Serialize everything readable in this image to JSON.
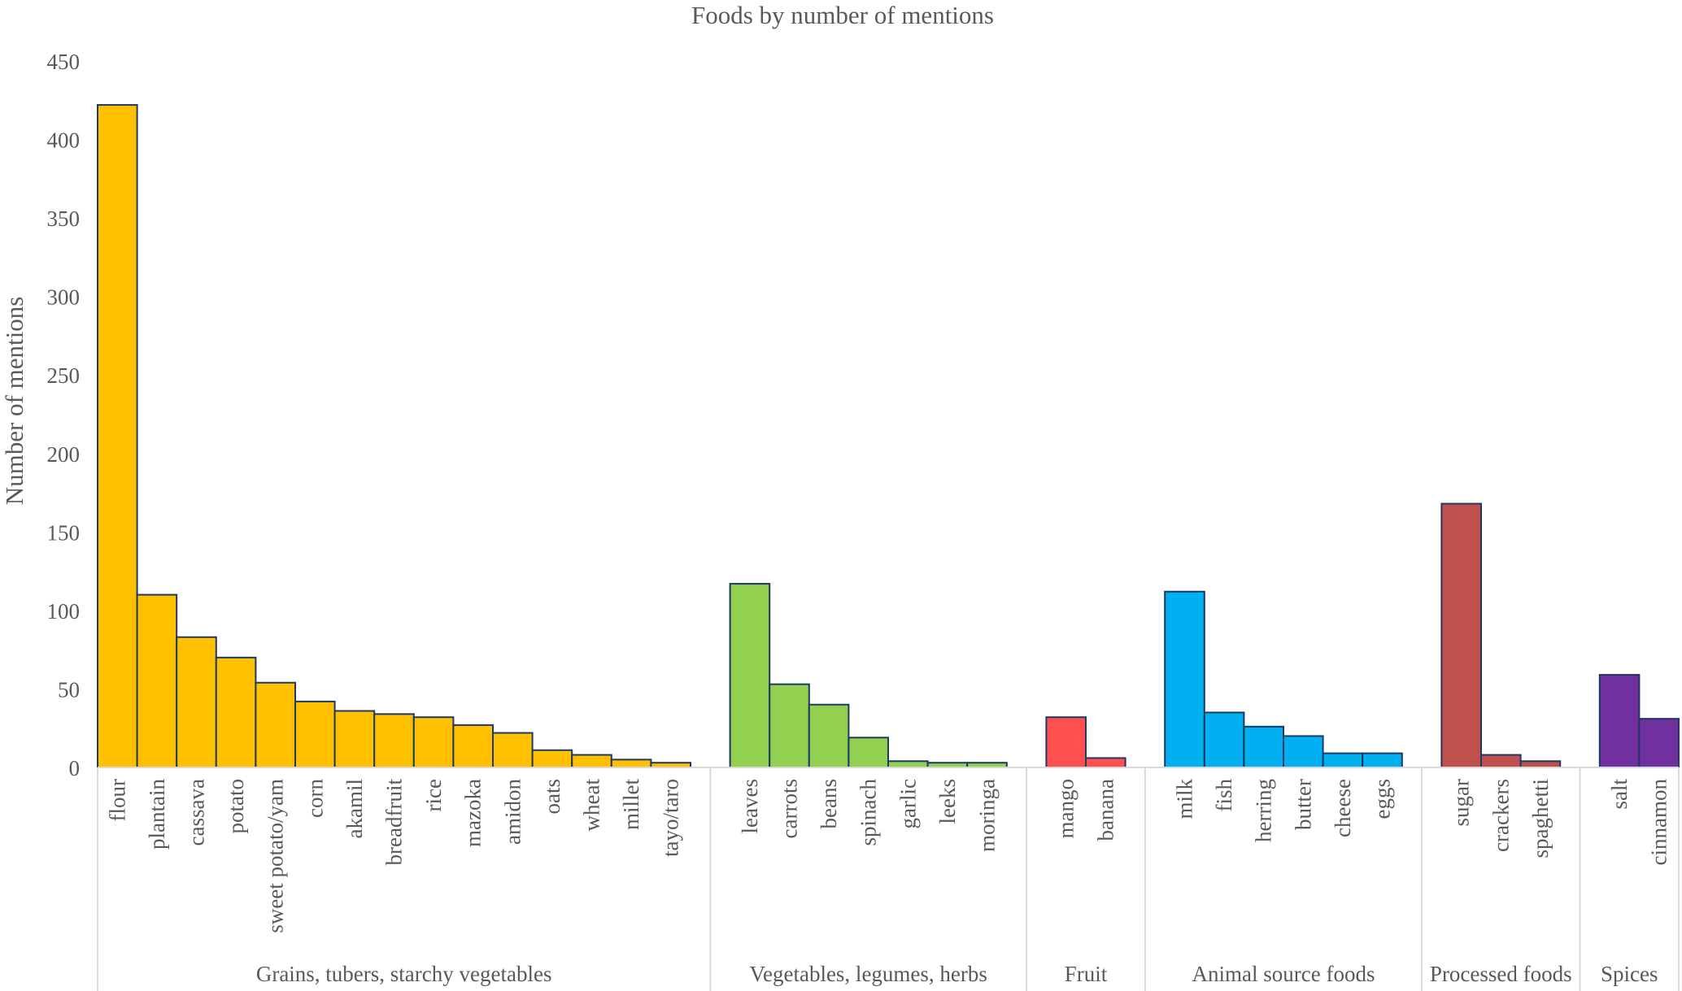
{
  "chart_data": {
    "type": "bar",
    "title": "Foods by number of mentions",
    "xlabel": "",
    "ylabel": "Number of mentions",
    "ylim": [
      0,
      450
    ],
    "yticks": [
      0,
      50,
      100,
      150,
      200,
      250,
      300,
      350,
      400,
      450
    ],
    "grid": false,
    "legend": "none",
    "groups": [
      {
        "name": "Grains, tubers, starchy vegetables",
        "color": "#FFC000",
        "categories": [
          "flour",
          "plantain",
          "cassava",
          "potato",
          "sweet potato/yam",
          "corn",
          "akamil",
          "breadfruit",
          "rice",
          "mazoka",
          "amidon",
          "oats",
          "wheat",
          "millet",
          "tayo/taro"
        ],
        "values": [
          422,
          110,
          83,
          70,
          54,
          42,
          36,
          34,
          32,
          27,
          22,
          11,
          8,
          5,
          3
        ]
      },
      {
        "name": "Vegetables, legumes, herbs",
        "color": "#92D050",
        "categories": [
          "leaves",
          "carrots",
          "beans",
          "spinach",
          "garlic",
          "leeks",
          "moringa"
        ],
        "values": [
          117,
          53,
          40,
          19,
          4,
          3,
          3
        ]
      },
      {
        "name": "Fruit",
        "color": "#FF5050",
        "categories": [
          "mango",
          "banana"
        ],
        "values": [
          32,
          6
        ]
      },
      {
        "name": "Animal source foods",
        "color": "#00B0F0",
        "categories": [
          "milk",
          "fish",
          "herring",
          "butter",
          "cheese",
          "eggs"
        ],
        "values": [
          112,
          35,
          26,
          20,
          9,
          9
        ]
      },
      {
        "name": "Processed foods",
        "color": "#C0504D",
        "categories": [
          "sugar",
          "crackers",
          "spaghetti"
        ],
        "values": [
          168,
          8,
          4
        ]
      },
      {
        "name": "Spices",
        "color": "#7030A0",
        "categories": [
          "salt",
          "cinnamon"
        ],
        "values": [
          59,
          31
        ]
      }
    ],
    "bar_outline_color": "#1F3864",
    "axis_color": "#D9D9D9",
    "text_color": "#595959"
  }
}
